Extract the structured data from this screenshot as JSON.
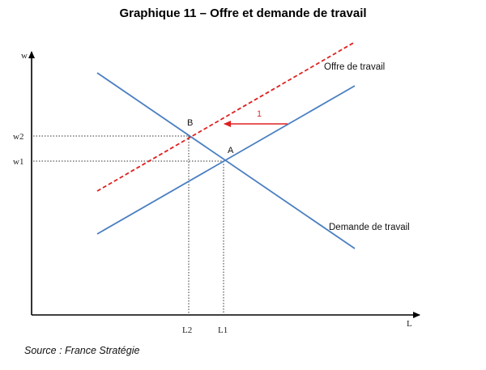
{
  "title": "Graphique 11 – Offre et demande de travail",
  "source": "Source : France Stratégie",
  "axes": {
    "y_label": "w",
    "x_label": "L"
  },
  "y_ticks": {
    "w2": "w2",
    "w1": "w1"
  },
  "x_ticks": {
    "l2": "L2",
    "l1": "L1"
  },
  "curves": {
    "supply_label": "Offre de travail",
    "demand_label": "Demande de travail"
  },
  "points": {
    "a": "A",
    "b": "B"
  },
  "shift_label": "1",
  "colors": {
    "curve": "#4a7fc1",
    "shifted_supply": "#e02020",
    "axis": "#000000",
    "guide": "#333333"
  }
}
